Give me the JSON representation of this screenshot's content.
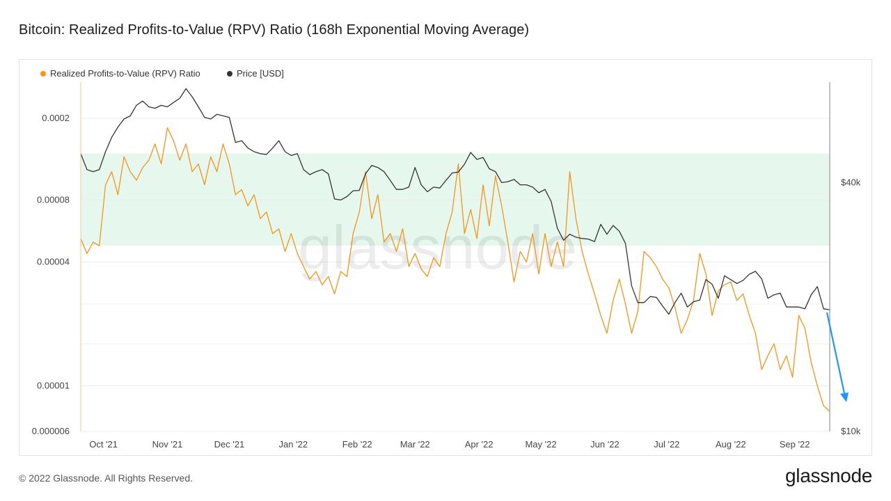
{
  "header": {
    "title": "Bitcoin: Realized Profits-to-Value (RPV) Ratio (168h Exponential Moving Average)"
  },
  "footer": {
    "copyright": "© 2022 Glassnode. All Rights Reserved.",
    "brand": "glassnode"
  },
  "watermark": "glassnode",
  "colors": {
    "rpv": "#f7931a",
    "price": "#333333",
    "band": "#e6f7ee",
    "arrow": "#2196f3"
  },
  "chart_data": {
    "type": "line",
    "title": "Bitcoin: Realized Profits-to-Value (RPV) Ratio (168h Exponential Moving Average)",
    "x_tick_labels": [
      "Oct '21",
      "Nov '21",
      "Dec '21",
      "Jan '22",
      "Feb '22",
      "Mar '22",
      "Apr '22",
      "May '22",
      "Jun '22",
      "Jul '22",
      "Aug '22",
      "Sep '22"
    ],
    "x_ticks": [
      "2021-10-01",
      "2021-11-01",
      "2021-12-01",
      "2022-01-01",
      "2022-02-01",
      "2022-03-01",
      "2022-04-01",
      "2022-05-01",
      "2022-06-01",
      "2022-07-01",
      "2022-08-01",
      "2022-09-01"
    ],
    "x_range": [
      "2021-09-20",
      "2022-09-18"
    ],
    "y_left": {
      "scale": "log",
      "range": [
        6e-06,
        0.0003
      ],
      "tick_labels": [
        "0.0002",
        "0.00008",
        "0.00004",
        "0.00001",
        "0.000006"
      ],
      "ticks": [
        0.0002,
        8e-05,
        4e-05,
        1e-05,
        6e-06
      ]
    },
    "y_right": {
      "scale": "log",
      "range": [
        10000,
        70000
      ],
      "tick_labels": [
        "$40k",
        "$10k"
      ],
      "ticks": [
        40000,
        10000
      ]
    },
    "band": {
      "low": 4.8e-05,
      "high": 0.000135
    },
    "legend_position": "top-left",
    "series": [
      {
        "name": "Realized Profits-to-Value (RPV) Ratio",
        "axis": "left",
        "x": [
          "2021-09-20",
          "2021-09-23",
          "2021-09-26",
          "2021-09-29",
          "2021-10-02",
          "2021-10-05",
          "2021-10-08",
          "2021-10-11",
          "2021-10-14",
          "2021-10-17",
          "2021-10-20",
          "2021-10-23",
          "2021-10-26",
          "2021-10-29",
          "2021-11-01",
          "2021-11-04",
          "2021-11-07",
          "2021-11-10",
          "2021-11-13",
          "2021-11-16",
          "2021-11-19",
          "2021-11-22",
          "2021-11-25",
          "2021-11-28",
          "2021-12-01",
          "2021-12-04",
          "2021-12-07",
          "2021-12-10",
          "2021-12-13",
          "2021-12-16",
          "2021-12-19",
          "2021-12-22",
          "2021-12-25",
          "2021-12-28",
          "2021-12-31",
          "2022-01-03",
          "2022-01-06",
          "2022-01-09",
          "2022-01-12",
          "2022-01-15",
          "2022-01-18",
          "2022-01-21",
          "2022-01-24",
          "2022-01-27",
          "2022-01-30",
          "2022-02-02",
          "2022-02-05",
          "2022-02-08",
          "2022-02-11",
          "2022-02-14",
          "2022-02-17",
          "2022-02-20",
          "2022-02-23",
          "2022-02-26",
          "2022-03-01",
          "2022-03-04",
          "2022-03-07",
          "2022-03-10",
          "2022-03-13",
          "2022-03-16",
          "2022-03-19",
          "2022-03-22",
          "2022-03-25",
          "2022-03-28",
          "2022-03-31",
          "2022-04-03",
          "2022-04-06",
          "2022-04-09",
          "2022-04-12",
          "2022-04-15",
          "2022-04-18",
          "2022-04-21",
          "2022-04-24",
          "2022-04-27",
          "2022-04-30",
          "2022-05-03",
          "2022-05-06",
          "2022-05-09",
          "2022-05-12",
          "2022-05-15",
          "2022-05-18",
          "2022-05-21",
          "2022-05-24",
          "2022-05-27",
          "2022-05-30",
          "2022-06-02",
          "2022-06-05",
          "2022-06-08",
          "2022-06-11",
          "2022-06-14",
          "2022-06-17",
          "2022-06-20",
          "2022-06-23",
          "2022-06-26",
          "2022-06-29",
          "2022-07-02",
          "2022-07-05",
          "2022-07-08",
          "2022-07-11",
          "2022-07-14",
          "2022-07-17",
          "2022-07-20",
          "2022-07-23",
          "2022-07-26",
          "2022-07-29",
          "2022-08-01",
          "2022-08-04",
          "2022-08-07",
          "2022-08-10",
          "2022-08-13",
          "2022-08-16",
          "2022-08-19",
          "2022-08-22",
          "2022-08-25",
          "2022-08-28",
          "2022-08-31",
          "2022-09-03",
          "2022-09-06",
          "2022-09-09",
          "2022-09-12",
          "2022-09-15",
          "2022-09-18"
        ],
        "y": [
          5.2e-05,
          4.4e-05,
          5e-05,
          4.8e-05,
          9.5e-05,
          0.00011,
          8.5e-05,
          0.00013,
          0.00011,
          0.0001,
          0.000115,
          0.000125,
          0.00015,
          0.00012,
          0.00018,
          0.000155,
          0.000125,
          0.00015,
          0.00011,
          0.00012,
          9.5e-05,
          0.00013,
          0.00011,
          0.00015,
          0.00012,
          8.5e-05,
          9e-05,
          7.5e-05,
          8.5e-05,
          6.5e-05,
          7e-05,
          5.5e-05,
          5.8e-05,
          4.5e-05,
          5.5e-05,
          4.4e-05,
          3.8e-05,
          3.3e-05,
          3.6e-05,
          3.1e-05,
          3.4e-05,
          2.8e-05,
          3.6e-05,
          3.4e-05,
          5.5e-05,
          7e-05,
          0.00011,
          6.5e-05,
          8.5e-05,
          5e-05,
          5.5e-05,
          4.5e-05,
          5.8e-05,
          3.8e-05,
          4.4e-05,
          3.7e-05,
          3.4e-05,
          4.2e-05,
          3.8e-05,
          5.5e-05,
          7e-05,
          0.00012,
          5.5e-05,
          7.2e-05,
          5.2e-05,
          9.5e-05,
          6e-05,
          0.000105,
          7.5e-05,
          5e-05,
          3.2e-05,
          4.5e-05,
          4e-05,
          5.5e-05,
          3.5e-05,
          5.5e-05,
          3.8e-05,
          5e-05,
          3.8e-05,
          0.00011,
          6.5e-05,
          4.5e-05,
          3.5e-05,
          2.8e-05,
          2.2e-05,
          1.8e-05,
          2.6e-05,
          3.3e-05,
          2.5e-05,
          1.8e-05,
          2.3e-05,
          4.5e-05,
          4.2e-05,
          3.8e-05,
          3.3e-05,
          3e-05,
          2.4e-05,
          1.8e-05,
          2.1e-05,
          2.6e-05,
          4.4e-05,
          3.5e-05,
          2.2e-05,
          2.9e-05,
          3.1e-05,
          3.2e-05,
          2.6e-05,
          2.8e-05,
          2.2e-05,
          1.8e-05,
          1.2e-05,
          1.4e-05,
          1.6e-05,
          1.2e-05,
          1.4e-05,
          1.1e-05,
          2.2e-05,
          1.9e-05,
          1.3e-05,
          1e-05,
          8e-06,
          7.5e-06
        ]
      },
      {
        "name": "Price [USD]",
        "axis": "right",
        "x": [
          "2021-09-20",
          "2021-09-23",
          "2021-09-26",
          "2021-09-29",
          "2021-10-02",
          "2021-10-05",
          "2021-10-08",
          "2021-10-11",
          "2021-10-14",
          "2021-10-17",
          "2021-10-20",
          "2021-10-23",
          "2021-10-26",
          "2021-10-29",
          "2021-11-01",
          "2021-11-04",
          "2021-11-07",
          "2021-11-10",
          "2021-11-13",
          "2021-11-16",
          "2021-11-19",
          "2021-11-22",
          "2021-11-25",
          "2021-11-28",
          "2021-12-01",
          "2021-12-04",
          "2021-12-07",
          "2021-12-10",
          "2021-12-13",
          "2021-12-16",
          "2021-12-19",
          "2021-12-22",
          "2021-12-25",
          "2021-12-28",
          "2021-12-31",
          "2022-01-03",
          "2022-01-06",
          "2022-01-09",
          "2022-01-12",
          "2022-01-15",
          "2022-01-18",
          "2022-01-21",
          "2022-01-24",
          "2022-01-27",
          "2022-01-30",
          "2022-02-02",
          "2022-02-05",
          "2022-02-08",
          "2022-02-11",
          "2022-02-14",
          "2022-02-17",
          "2022-02-20",
          "2022-02-23",
          "2022-02-26",
          "2022-03-01",
          "2022-03-04",
          "2022-03-07",
          "2022-03-10",
          "2022-03-13",
          "2022-03-16",
          "2022-03-19",
          "2022-03-22",
          "2022-03-25",
          "2022-03-28",
          "2022-03-31",
          "2022-04-03",
          "2022-04-06",
          "2022-04-09",
          "2022-04-12",
          "2022-04-15",
          "2022-04-18",
          "2022-04-21",
          "2022-04-24",
          "2022-04-27",
          "2022-04-30",
          "2022-05-03",
          "2022-05-06",
          "2022-05-09",
          "2022-05-12",
          "2022-05-15",
          "2022-05-18",
          "2022-05-21",
          "2022-05-24",
          "2022-05-27",
          "2022-05-30",
          "2022-06-02",
          "2022-06-05",
          "2022-06-08",
          "2022-06-11",
          "2022-06-14",
          "2022-06-17",
          "2022-06-20",
          "2022-06-23",
          "2022-06-26",
          "2022-06-29",
          "2022-07-02",
          "2022-07-05",
          "2022-07-08",
          "2022-07-11",
          "2022-07-14",
          "2022-07-17",
          "2022-07-20",
          "2022-07-23",
          "2022-07-26",
          "2022-07-29",
          "2022-08-01",
          "2022-08-04",
          "2022-08-07",
          "2022-08-10",
          "2022-08-13",
          "2022-08-16",
          "2022-08-19",
          "2022-08-22",
          "2022-08-25",
          "2022-08-28",
          "2022-08-31",
          "2022-09-03",
          "2022-09-06",
          "2022-09-09",
          "2022-09-12",
          "2022-09-15",
          "2022-09-18"
        ],
        "y": [
          47000,
          43000,
          42500,
          43000,
          47500,
          51500,
          54500,
          57000,
          58000,
          61500,
          63000,
          61000,
          60500,
          61500,
          61000,
          62500,
          64000,
          67500,
          64500,
          61000,
          57500,
          57000,
          58500,
          58000,
          57500,
          50000,
          50500,
          48500,
          47500,
          47000,
          46800,
          48500,
          50500,
          47500,
          46500,
          47000,
          43000,
          41800,
          42500,
          43000,
          42000,
          36500,
          36300,
          37000,
          38200,
          38300,
          42000,
          44000,
          43500,
          42500,
          40500,
          38500,
          38500,
          39000,
          43500,
          39500,
          38000,
          39000,
          38800,
          40500,
          42200,
          42400,
          44300,
          47300,
          45500,
          46000,
          43200,
          42500,
          40000,
          40200,
          40700,
          39500,
          39500,
          39000,
          37800,
          38500,
          36000,
          31000,
          29000,
          30000,
          29500,
          29300,
          29200,
          28800,
          31700,
          30000,
          31500,
          30500,
          28500,
          22500,
          20500,
          20500,
          21200,
          21100,
          20100,
          19200,
          20500,
          21600,
          20000,
          20600,
          20800,
          23300,
          22700,
          21000,
          23800,
          23300,
          22800,
          23200,
          24000,
          24400,
          23400,
          21000,
          21400,
          21600,
          20000,
          20000,
          20000,
          19800,
          21400,
          22400,
          19800,
          19700
        ]
      }
    ]
  }
}
